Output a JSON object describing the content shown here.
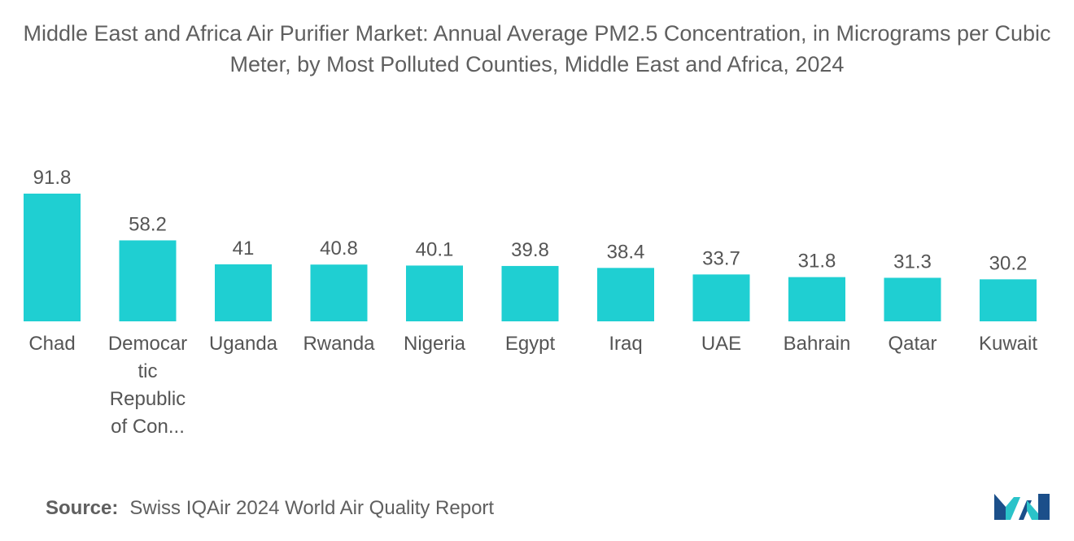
{
  "title": "Middle East and Africa Air Purifier Market: Annual Average PM2.5 Concentration, in Micrograms per Cubic Meter, by Most Polluted Counties, Middle East and Africa, 2024",
  "source": {
    "label": "Source:",
    "text": "Swiss IQAir 2024 World Air Quality Report"
  },
  "colors": {
    "bar": "#1fcfd2",
    "text": "#555555"
  },
  "chart_data": {
    "type": "bar",
    "title": "Middle East and Africa Air Purifier Market: Annual Average PM2.5 Concentration, in Micrograms per Cubic Meter, by Most Polluted Counties, Middle East and Africa, 2024",
    "xlabel": "",
    "ylabel": "",
    "ylim": [
      0,
      100
    ],
    "grid": false,
    "categories": [
      [
        "Chad"
      ],
      [
        "Democar",
        "tic",
        "Republic",
        "of Con..."
      ],
      [
        "Uganda"
      ],
      [
        "Rwanda"
      ],
      [
        "Nigeria"
      ],
      [
        "Egypt"
      ],
      [
        "Iraq"
      ],
      [
        "UAE"
      ],
      [
        "Bahrain"
      ],
      [
        "Qatar"
      ],
      [
        "Kuwait"
      ]
    ],
    "values": [
      91.8,
      58.2,
      41,
      40.8,
      40.1,
      39.8,
      38.4,
      33.7,
      31.8,
      31.3,
      30.2
    ]
  }
}
